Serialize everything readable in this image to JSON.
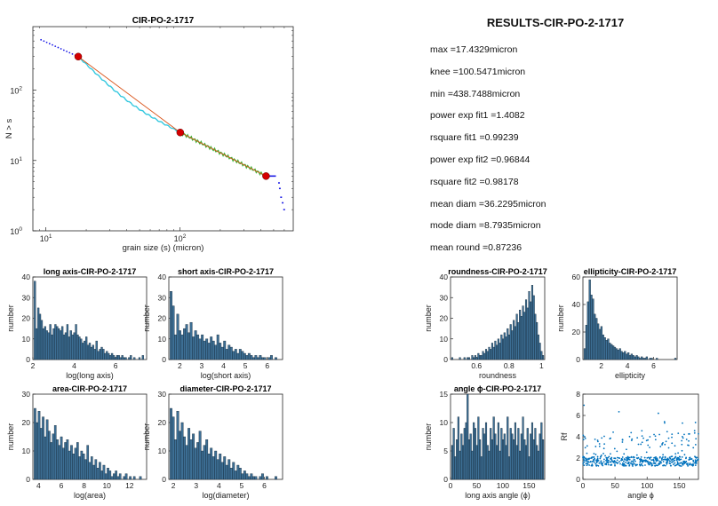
{
  "results": {
    "title": "RESULTS-CIR-PO-2-1717",
    "lines": [
      "max =17.4329micron",
      "knee =100.5471micron",
      "min =438.7488micron",
      "power exp fit1 =1.4082",
      "rsquare fit1 =0.99239",
      "power exp fit2 =0.96844",
      "rsquare fit2 =0.98178",
      "mean diam =36.2295micron",
      "mode diam =8.7935micron",
      "mean round =0.87236"
    ]
  },
  "colors": {
    "bar": "#3d6f95",
    "scatter": "#0072bd",
    "fit1": "#d95319",
    "curve1": "#35c8df",
    "curve2": "#3fb53a",
    "marker": "#d40000",
    "tail": "#1a1ae6"
  },
  "chart_data": [
    {
      "id": "loglog",
      "type": "scatter",
      "title": "CIR-PO-2-1717",
      "xlabel": "grain size (s) (micron)",
      "ylabel": "N > s",
      "xscale": "log",
      "yscale": "log",
      "xlim": [
        8,
        700
      ],
      "ylim": [
        1,
        800
      ],
      "xticks": [
        10,
        100
      ],
      "xtick_labels": [
        "10^1",
        "10^2"
      ],
      "yticks": [
        1,
        10,
        100
      ],
      "ytick_labels": [
        "10^0",
        "10^1",
        "10^2"
      ],
      "markers": [
        {
          "x": 17.4329,
          "y": 300
        },
        {
          "x": 100.5471,
          "y": 25
        },
        {
          "x": 438.7488,
          "y": 6
        }
      ]
    },
    {
      "id": "long",
      "type": "bar",
      "title": "long axis-CIR-PO-2-1717",
      "xlabel": "log(long axis)",
      "ylabel": "number",
      "xlim": [
        2,
        7.5
      ],
      "ylim": [
        0,
        40
      ],
      "xticks": [
        2,
        4,
        6
      ],
      "yticks": [
        0,
        10,
        20,
        30,
        40
      ],
      "values": [
        38,
        15,
        25,
        22,
        19,
        15,
        16,
        14,
        13,
        17,
        12,
        15,
        17,
        16,
        15,
        14,
        16,
        12,
        13,
        17,
        11,
        14,
        12,
        13,
        17,
        12,
        11,
        10,
        8,
        9,
        11,
        7,
        8,
        6,
        7,
        5,
        9,
        4,
        5,
        6,
        5,
        3,
        4,
        3,
        2,
        3,
        2,
        1,
        2,
        2,
        1,
        2,
        1,
        1,
        0,
        1,
        2,
        0,
        1,
        0,
        0,
        1,
        0,
        2,
        0
      ]
    },
    {
      "id": "short",
      "type": "bar",
      "title": "short axis-CIR-PO-2-1717",
      "xlabel": "log(short axis)",
      "ylabel": "number",
      "xlim": [
        1.5,
        6.7
      ],
      "ylim": [
        0,
        40
      ],
      "xticks": [
        2,
        3,
        4,
        5,
        6
      ],
      "yticks": [
        0,
        10,
        20,
        30,
        40
      ],
      "values": [
        33,
        26,
        12,
        22,
        14,
        12,
        15,
        17,
        13,
        18,
        11,
        14,
        12,
        10,
        12,
        9,
        10,
        8,
        11,
        9,
        7,
        12,
        8,
        6,
        9,
        5,
        7,
        6,
        4,
        5,
        3,
        5,
        4,
        3,
        2,
        3,
        2,
        1,
        2,
        1,
        2,
        1,
        1,
        0,
        1,
        2,
        0,
        1,
        0,
        0
      ]
    },
    {
      "id": "area",
      "type": "bar",
      "title": "area-CIR-PO-2-1717",
      "xlabel": "log(area)",
      "ylabel": "number",
      "xlim": [
        3.5,
        13.5
      ],
      "ylim": [
        0,
        30
      ],
      "xticks": [
        4,
        6,
        8,
        10,
        12
      ],
      "yticks": [
        0,
        10,
        20,
        30
      ],
      "values": [
        25,
        20,
        24,
        18,
        22,
        15,
        21,
        17,
        13,
        16,
        19,
        14,
        12,
        15,
        11,
        13,
        14,
        10,
        12,
        9,
        11,
        13,
        8,
        10,
        9,
        7,
        12,
        6,
        8,
        5,
        7,
        4,
        6,
        3,
        5,
        2,
        4,
        3,
        1,
        2,
        3,
        1,
        2,
        0,
        1,
        2,
        0,
        1,
        0,
        1,
        0,
        0,
        1,
        0,
        0
      ]
    },
    {
      "id": "diam",
      "type": "bar",
      "title": "diameter-CIR-PO-2-1717",
      "xlabel": "log(diameter)",
      "ylabel": "number",
      "xlim": [
        1.8,
        6.8
      ],
      "ylim": [
        0,
        30
      ],
      "xticks": [
        2,
        3,
        4,
        5,
        6
      ],
      "yticks": [
        0,
        10,
        20,
        30
      ],
      "values": [
        25,
        22,
        14,
        24,
        17,
        20,
        15,
        12,
        18,
        14,
        16,
        11,
        13,
        17,
        10,
        12,
        14,
        9,
        11,
        8,
        10,
        7,
        9,
        6,
        8,
        5,
        7,
        4,
        6,
        3,
        5,
        4,
        2,
        3,
        2,
        1,
        2,
        1,
        1,
        0,
        1,
        2,
        0,
        1,
        0,
        0,
        0,
        1,
        0,
        0
      ]
    },
    {
      "id": "round",
      "type": "bar",
      "title": "roundness-CIR-PO-2-1717",
      "xlabel": "roundness",
      "ylabel": "number",
      "xlim": [
        0.44,
        1.02
      ],
      "ylim": [
        0,
        40
      ],
      "xticks": [
        0.6,
        0.8,
        1
      ],
      "xtick_labels": [
        "0.6",
        "0.8",
        "1"
      ],
      "yticks": [
        0,
        10,
        20,
        30,
        40
      ],
      "values": [
        1,
        0,
        0,
        0,
        0,
        1,
        0,
        0,
        1,
        0,
        1,
        1,
        0,
        2,
        1,
        2,
        1,
        3,
        2,
        2,
        4,
        3,
        5,
        4,
        6,
        5,
        8,
        6,
        9,
        7,
        10,
        8,
        12,
        10,
        13,
        11,
        15,
        12,
        17,
        14,
        19,
        16,
        22,
        18,
        24,
        21,
        26,
        23,
        29,
        25,
        33,
        28,
        36,
        31,
        22,
        18,
        12,
        8,
        4,
        2
      ]
    },
    {
      "id": "ellip",
      "type": "bar",
      "title": "ellipticity-CIR-PO-2-1717",
      "xlabel": "ellipticity",
      "ylabel": "number",
      "xlim": [
        0.6,
        7.8
      ],
      "ylim": [
        0,
        60
      ],
      "xticks": [
        2,
        4,
        6
      ],
      "yticks": [
        0,
        20,
        40,
        60
      ],
      "values": [
        8,
        25,
        42,
        58,
        47,
        44,
        33,
        30,
        26,
        22,
        24,
        18,
        16,
        14,
        15,
        12,
        11,
        10,
        9,
        8,
        7,
        8,
        6,
        5,
        6,
        4,
        5,
        3,
        4,
        3,
        2,
        3,
        2,
        1,
        2,
        1,
        1,
        2,
        0,
        1,
        1,
        0,
        0,
        1,
        0,
        0,
        0,
        0,
        0,
        0,
        0,
        0,
        0,
        0,
        1
      ]
    },
    {
      "id": "angle",
      "type": "bar",
      "title": "angle ϕ-CIR-PO-2-1717",
      "xlabel": "long axis angle (ϕ)",
      "ylabel": "number",
      "xlim": [
        0,
        180
      ],
      "ylim": [
        0,
        15
      ],
      "xticks": [
        0,
        50,
        100,
        150
      ],
      "yticks": [
        0,
        5,
        10,
        15
      ],
      "values": [
        6,
        9,
        4,
        7,
        11,
        5,
        8,
        6,
        9,
        10,
        15,
        7,
        8,
        5,
        10,
        9,
        6,
        11,
        7,
        4,
        9,
        8,
        10,
        6,
        5,
        9,
        7,
        11,
        8,
        6,
        10,
        5,
        9,
        7,
        8,
        6,
        11,
        4,
        9,
        8,
        7,
        10,
        6,
        9,
        5,
        8,
        11,
        7,
        6,
        9,
        4,
        8,
        10,
        7,
        9,
        6,
        5,
        8,
        10,
        7
      ]
    },
    {
      "id": "rf",
      "type": "scatter",
      "title": "",
      "xlabel": "angle ϕ",
      "ylabel": "Rf",
      "xlim": [
        0,
        180
      ],
      "ylim": [
        0,
        8
      ],
      "xticks": [
        0,
        50,
        100,
        150
      ],
      "yticks": [
        0,
        2,
        4,
        6,
        8
      ],
      "points_seed": 7,
      "points_count": 520,
      "baseline": 1.7
    }
  ]
}
